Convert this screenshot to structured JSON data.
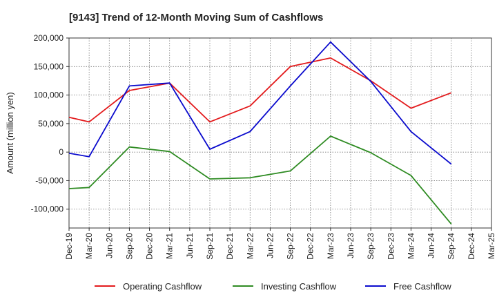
{
  "chart_data": {
    "type": "line",
    "title": "[9143]  Trend of 12-Month Moving Sum of Cashflows",
    "xlabel": "",
    "ylabel": "Amount (million yen)",
    "categories": [
      "Dec-19",
      "Mar-20",
      "Jun-20",
      "Sep-20",
      "Dec-20",
      "Mar-21",
      "Jun-21",
      "Sep-21",
      "Dec-21",
      "Mar-22",
      "Jun-22",
      "Sep-22",
      "Dec-22",
      "Mar-23",
      "Jun-23",
      "Sep-23",
      "Dec-23",
      "Mar-24",
      "Jun-24",
      "Sep-24",
      "Dec-24",
      "Mar-25"
    ],
    "ylim": [
      -133000,
      200000
    ],
    "yticks": [
      200000,
      150000,
      100000,
      50000,
      0,
      -50000,
      -100000
    ],
    "ytick_labels": [
      "200,000",
      "150,000",
      "100,000",
      "50,000",
      "0",
      "-50,000",
      "-100,000"
    ],
    "grid": true,
    "legend_position": "bottom",
    "series": [
      {
        "name": "Operating Cashflow",
        "color": "#e31a1c",
        "values": [
          {
            "x": "Dec-19",
            "y": 61000
          },
          {
            "x": "Mar-20",
            "y": 53000
          },
          {
            "x": "Sep-20",
            "y": 108000
          },
          {
            "x": "Mar-21",
            "y": 121000
          },
          {
            "x": "Sep-21",
            "y": 53000
          },
          {
            "x": "Mar-22",
            "y": 81000
          },
          {
            "x": "Sep-22",
            "y": 150000
          },
          {
            "x": "Mar-23",
            "y": 165000
          },
          {
            "x": "Sep-23",
            "y": 125000
          },
          {
            "x": "Mar-24",
            "y": 77000
          },
          {
            "x": "Sep-24",
            "y": 104000
          }
        ]
      },
      {
        "name": "Investing Cashflow",
        "color": "#2e8b22",
        "values": [
          {
            "x": "Dec-19",
            "y": -64000
          },
          {
            "x": "Mar-20",
            "y": -62000
          },
          {
            "x": "Sep-20",
            "y": 9000
          },
          {
            "x": "Mar-21",
            "y": 1000
          },
          {
            "x": "Sep-21",
            "y": -47000
          },
          {
            "x": "Mar-22",
            "y": -45000
          },
          {
            "x": "Sep-22",
            "y": -33000
          },
          {
            "x": "Mar-23",
            "y": 28000
          },
          {
            "x": "Sep-23",
            "y": -1000
          },
          {
            "x": "Mar-24",
            "y": -41000
          },
          {
            "x": "Sep-24",
            "y": -126000
          }
        ]
      },
      {
        "name": "Free Cashflow",
        "color": "#0a0acd",
        "values": [
          {
            "x": "Dec-19",
            "y": -2000
          },
          {
            "x": "Mar-20",
            "y": -8000
          },
          {
            "x": "Sep-20",
            "y": 116000
          },
          {
            "x": "Mar-21",
            "y": 121000
          },
          {
            "x": "Sep-21",
            "y": 5000
          },
          {
            "x": "Mar-22",
            "y": 36000
          },
          {
            "x": "Sep-22",
            "y": 116000
          },
          {
            "x": "Mar-23",
            "y": 193000
          },
          {
            "x": "Sep-23",
            "y": 124000
          },
          {
            "x": "Mar-24",
            "y": 36000
          },
          {
            "x": "Sep-24",
            "y": -21000
          }
        ]
      }
    ]
  }
}
